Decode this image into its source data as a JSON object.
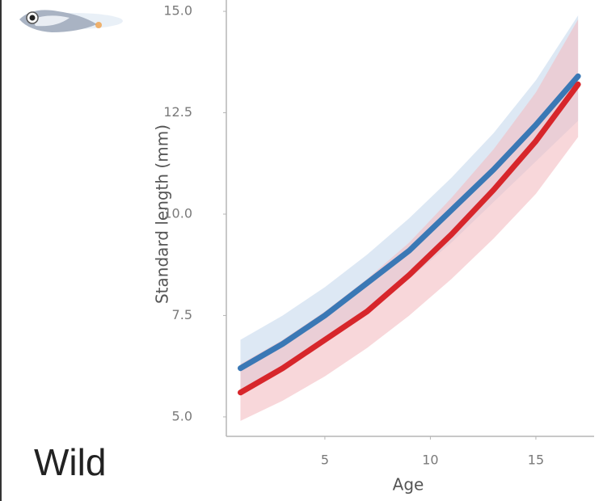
{
  "label": "Wild",
  "chart_data": {
    "type": "line",
    "x_label": "Age",
    "y_label": "Standard length (mm)",
    "x": [
      1,
      3,
      5,
      7,
      9,
      11,
      13,
      15,
      17
    ],
    "series": [
      {
        "color": "#3a78b5",
        "band_color": "#c7d8ec",
        "values": [
          6.2,
          6.8,
          7.5,
          8.3,
          9.1,
          10.1,
          11.1,
          12.2,
          13.4
        ],
        "lower": [
          5.6,
          6.2,
          6.9,
          7.6,
          8.4,
          9.3,
          10.3,
          11.3,
          12.3
        ],
        "upper": [
          6.9,
          7.5,
          8.2,
          9.0,
          9.9,
          10.9,
          12.0,
          13.3,
          14.9
        ]
      },
      {
        "color": "#d7262b",
        "band_color": "#f3bcc2",
        "values": [
          5.6,
          6.2,
          6.9,
          7.6,
          8.5,
          9.5,
          10.6,
          11.8,
          13.2
        ],
        "lower": [
          4.9,
          5.4,
          6.0,
          6.7,
          7.5,
          8.4,
          9.4,
          10.5,
          11.9
        ],
        "upper": [
          6.3,
          6.9,
          7.6,
          8.4,
          9.3,
          10.4,
          11.6,
          13.0,
          14.8
        ]
      }
    ],
    "xlim": [
      0.33,
      17.76
    ],
    "ylim": [
      4.52,
      15.28
    ],
    "xticks": [
      5,
      10,
      15
    ],
    "yticks": [
      {
        "value": 5,
        "label": "5.0"
      },
      {
        "value": 7.5,
        "label": "7.5"
      },
      {
        "value": 10,
        "label": "10.0"
      },
      {
        "value": 12.5,
        "label": "12.5"
      },
      {
        "value": 15,
        "label": "15.0"
      }
    ],
    "grid": false
  }
}
